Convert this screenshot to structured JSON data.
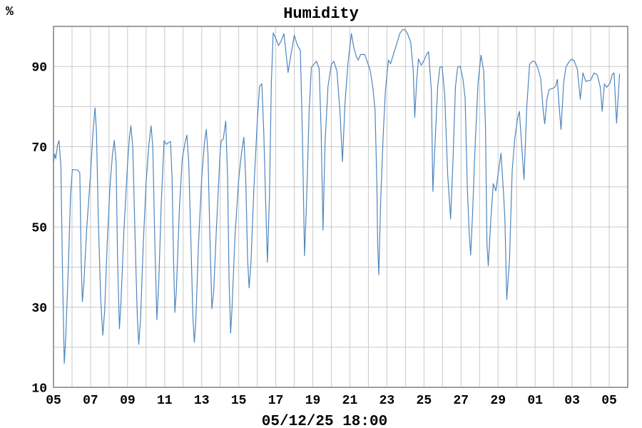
{
  "chart": {
    "colors": {
      "line": "#4f86bd",
      "title": "#2d6ea8",
      "grid": "#c9c9c9",
      "border": "#9f9f9f",
      "tick_text": "#000000",
      "background": "#ffffff"
    }
  },
  "chart_data": {
    "type": "line",
    "title": "Humidity",
    "ylabel": "%",
    "xlabel": "05/12/25 18:00",
    "ylim": [
      10,
      100
    ],
    "grid": true,
    "y_gridline_step": 10,
    "x_gridline_step_days": 1,
    "x_range_days": [
      5,
      36
    ],
    "y_ticks": [
      {
        "value": 90,
        "label": "90"
      },
      {
        "value": 70,
        "label": "70"
      },
      {
        "value": 50,
        "label": "50"
      },
      {
        "value": 30,
        "label": "30"
      },
      {
        "value": 10,
        "label": "10"
      }
    ],
    "x_ticks": [
      {
        "day": 5,
        "label": "05"
      },
      {
        "day": 7,
        "label": "07"
      },
      {
        "day": 9,
        "label": "09"
      },
      {
        "day": 11,
        "label": "11"
      },
      {
        "day": 13,
        "label": "13"
      },
      {
        "day": 15,
        "label": "15"
      },
      {
        "day": 17,
        "label": "17"
      },
      {
        "day": 19,
        "label": "19"
      },
      {
        "day": 21,
        "label": "21"
      },
      {
        "day": 23,
        "label": "23"
      },
      {
        "day": 25,
        "label": "25"
      },
      {
        "day": 27,
        "label": "27"
      },
      {
        "day": 29,
        "label": "29"
      },
      {
        "day": 31,
        "label": "01"
      },
      {
        "day": 33,
        "label": "03"
      },
      {
        "day": 35,
        "label": "05"
      }
    ],
    "series": [
      {
        "name": "Humidity",
        "points": [
          [
            5.0,
            66.3
          ],
          [
            5.06,
            68.2
          ],
          [
            5.12,
            67.0
          ],
          [
            5.22,
            70.5
          ],
          [
            5.3,
            71.5
          ],
          [
            5.4,
            65.0
          ],
          [
            5.48,
            40.0
          ],
          [
            5.58,
            16.0
          ],
          [
            5.66,
            22.0
          ],
          [
            5.8,
            40.0
          ],
          [
            5.92,
            58.0
          ],
          [
            6.02,
            64.3
          ],
          [
            6.3,
            64.2
          ],
          [
            6.42,
            63.5
          ],
          [
            6.5,
            40.0
          ],
          [
            6.56,
            31.4
          ],
          [
            6.64,
            36.0
          ],
          [
            6.8,
            50.0
          ],
          [
            7.0,
            63.0
          ],
          [
            7.12,
            73.0
          ],
          [
            7.24,
            79.7
          ],
          [
            7.32,
            74.0
          ],
          [
            7.42,
            52.0
          ],
          [
            7.55,
            32.0
          ],
          [
            7.66,
            23.0
          ],
          [
            7.76,
            29.0
          ],
          [
            7.9,
            46.0
          ],
          [
            8.05,
            60.0
          ],
          [
            8.18,
            68.0
          ],
          [
            8.28,
            71.6
          ],
          [
            8.38,
            66.0
          ],
          [
            8.46,
            42.0
          ],
          [
            8.56,
            24.6
          ],
          [
            8.64,
            31.0
          ],
          [
            8.8,
            49.0
          ],
          [
            9.0,
            66.0
          ],
          [
            9.1,
            72.5
          ],
          [
            9.18,
            75.2
          ],
          [
            9.28,
            70.0
          ],
          [
            9.4,
            48.0
          ],
          [
            9.52,
            28.0
          ],
          [
            9.6,
            20.7
          ],
          [
            9.7,
            27.0
          ],
          [
            9.85,
            46.0
          ],
          [
            10.0,
            61.0
          ],
          [
            10.15,
            70.5
          ],
          [
            10.27,
            75.2
          ],
          [
            10.36,
            70.0
          ],
          [
            10.46,
            48.0
          ],
          [
            10.58,
            26.9
          ],
          [
            10.68,
            36.0
          ],
          [
            10.82,
            56.0
          ],
          [
            10.97,
            71.5
          ],
          [
            11.1,
            70.6
          ],
          [
            11.2,
            71.0
          ],
          [
            11.32,
            71.3
          ],
          [
            11.4,
            62.0
          ],
          [
            11.48,
            42.0
          ],
          [
            11.55,
            28.7
          ],
          [
            11.63,
            34.0
          ],
          [
            11.8,
            55.0
          ],
          [
            11.95,
            67.0
          ],
          [
            12.1,
            71.0
          ],
          [
            12.2,
            72.9
          ],
          [
            12.3,
            66.0
          ],
          [
            12.42,
            46.0
          ],
          [
            12.52,
            28.0
          ],
          [
            12.6,
            21.2
          ],
          [
            12.68,
            26.0
          ],
          [
            12.82,
            45.0
          ],
          [
            13.0,
            62.0
          ],
          [
            13.15,
            71.0
          ],
          [
            13.25,
            74.3
          ],
          [
            13.34,
            68.0
          ],
          [
            13.44,
            48.0
          ],
          [
            13.55,
            29.6
          ],
          [
            13.65,
            34.0
          ],
          [
            13.8,
            50.0
          ],
          [
            14.0,
            69.0
          ],
          [
            14.06,
            71.6
          ],
          [
            14.16,
            71.8
          ],
          [
            14.3,
            76.4
          ],
          [
            14.4,
            62.0
          ],
          [
            14.48,
            36.0
          ],
          [
            14.56,
            23.5
          ],
          [
            14.64,
            30.0
          ],
          [
            14.8,
            48.0
          ],
          [
            15.0,
            62.0
          ],
          [
            15.15,
            68.5
          ],
          [
            15.28,
            72.4
          ],
          [
            15.38,
            62.0
          ],
          [
            15.48,
            42.0
          ],
          [
            15.56,
            34.8
          ],
          [
            15.66,
            41.0
          ],
          [
            15.82,
            60.0
          ],
          [
            16.0,
            76.0
          ],
          [
            16.12,
            85.0
          ],
          [
            16.25,
            85.7
          ],
          [
            16.35,
            74.0
          ],
          [
            16.46,
            55.0
          ],
          [
            16.55,
            41.2
          ],
          [
            16.66,
            58.0
          ],
          [
            16.76,
            86.0
          ],
          [
            16.86,
            98.4
          ],
          [
            17.0,
            97.0
          ],
          [
            17.15,
            95.2
          ],
          [
            17.3,
            96.5
          ],
          [
            17.44,
            98.2
          ],
          [
            17.56,
            93.0
          ],
          [
            17.66,
            88.5
          ],
          [
            17.82,
            93.0
          ],
          [
            18.0,
            97.8
          ],
          [
            18.15,
            95.5
          ],
          [
            18.33,
            93.9
          ],
          [
            18.44,
            72.0
          ],
          [
            18.55,
            42.8
          ],
          [
            18.66,
            56.0
          ],
          [
            18.8,
            79.0
          ],
          [
            18.92,
            89.8
          ],
          [
            19.05,
            90.5
          ],
          [
            19.2,
            91.3
          ],
          [
            19.34,
            89.5
          ],
          [
            19.45,
            74.0
          ],
          [
            19.55,
            49.2
          ],
          [
            19.66,
            71.0
          ],
          [
            19.82,
            85.0
          ],
          [
            20.0,
            90.5
          ],
          [
            20.13,
            91.3
          ],
          [
            20.3,
            88.9
          ],
          [
            20.46,
            79.0
          ],
          [
            20.6,
            66.3
          ],
          [
            20.74,
            81.0
          ],
          [
            20.9,
            91.0
          ],
          [
            21.08,
            98.2
          ],
          [
            21.22,
            94.5
          ],
          [
            21.35,
            92.5
          ],
          [
            21.45,
            91.6
          ],
          [
            21.58,
            93.0
          ],
          [
            21.8,
            93.0
          ],
          [
            21.95,
            91.0
          ],
          [
            22.1,
            89.0
          ],
          [
            22.25,
            84.5
          ],
          [
            22.36,
            79.0
          ],
          [
            22.46,
            60.0
          ],
          [
            22.5,
            46.0
          ],
          [
            22.56,
            38.1
          ],
          [
            22.66,
            56.0
          ],
          [
            22.8,
            73.0
          ],
          [
            22.92,
            84.0
          ],
          [
            23.08,
            91.6
          ],
          [
            23.2,
            90.7
          ],
          [
            23.4,
            93.8
          ],
          [
            23.52,
            95.5
          ],
          [
            23.7,
            98.3
          ],
          [
            23.85,
            99.2
          ],
          [
            23.97,
            99.2
          ],
          [
            24.1,
            98.3
          ],
          [
            24.28,
            96.1
          ],
          [
            24.42,
            89.0
          ],
          [
            24.5,
            77.3
          ],
          [
            24.6,
            86.0
          ],
          [
            24.7,
            91.9
          ],
          [
            24.85,
            90.3
          ],
          [
            25.0,
            91.5
          ],
          [
            25.14,
            93.0
          ],
          [
            25.25,
            93.7
          ],
          [
            25.4,
            84.0
          ],
          [
            25.48,
            58.9
          ],
          [
            25.6,
            71.0
          ],
          [
            25.74,
            85.0
          ],
          [
            25.86,
            89.8
          ],
          [
            25.98,
            90.0
          ],
          [
            26.12,
            83.0
          ],
          [
            26.28,
            63.0
          ],
          [
            26.44,
            52.0
          ],
          [
            26.56,
            66.0
          ],
          [
            26.7,
            85.0
          ],
          [
            26.82,
            89.8
          ],
          [
            26.95,
            90.1
          ],
          [
            27.1,
            87.0
          ],
          [
            27.22,
            82.3
          ],
          [
            27.34,
            60.0
          ],
          [
            27.44,
            48.5
          ],
          [
            27.52,
            43.0
          ],
          [
            27.62,
            53.0
          ],
          [
            27.76,
            70.0
          ],
          [
            27.92,
            86.0
          ],
          [
            28.08,
            92.8
          ],
          [
            28.22,
            89.0
          ],
          [
            28.32,
            75.0
          ],
          [
            28.4,
            46.0
          ],
          [
            28.47,
            40.3
          ],
          [
            28.6,
            51.0
          ],
          [
            28.74,
            60.8
          ],
          [
            28.88,
            59.0
          ],
          [
            29.04,
            64.5
          ],
          [
            29.16,
            68.4
          ],
          [
            29.3,
            58.0
          ],
          [
            29.37,
            52.0
          ],
          [
            29.47,
            31.9
          ],
          [
            29.62,
            42.0
          ],
          [
            29.76,
            64.0
          ],
          [
            29.9,
            72.0
          ],
          [
            30.05,
            77.0
          ],
          [
            30.15,
            78.8
          ],
          [
            30.28,
            70.0
          ],
          [
            30.4,
            61.8
          ],
          [
            30.55,
            80.0
          ],
          [
            30.7,
            90.5
          ],
          [
            30.85,
            91.3
          ],
          [
            31.0,
            91.2
          ],
          [
            31.15,
            89.5
          ],
          [
            31.3,
            87.0
          ],
          [
            31.44,
            78.8
          ],
          [
            31.52,
            75.7
          ],
          [
            31.64,
            82.0
          ],
          [
            31.76,
            84.3
          ],
          [
            31.95,
            84.5
          ],
          [
            32.1,
            85.0
          ],
          [
            32.2,
            86.8
          ],
          [
            32.3,
            80.0
          ],
          [
            32.4,
            74.3
          ],
          [
            32.54,
            86.0
          ],
          [
            32.66,
            89.8
          ],
          [
            32.8,
            91.0
          ],
          [
            32.95,
            91.8
          ],
          [
            33.1,
            91.5
          ],
          [
            33.28,
            89.3
          ],
          [
            33.44,
            81.8
          ],
          [
            33.58,
            88.4
          ],
          [
            33.74,
            86.3
          ],
          [
            34.0,
            86.6
          ],
          [
            34.18,
            88.4
          ],
          [
            34.35,
            88.0
          ],
          [
            34.52,
            84.8
          ],
          [
            34.62,
            78.8
          ],
          [
            34.74,
            85.7
          ],
          [
            34.86,
            84.8
          ],
          [
            35.05,
            85.9
          ],
          [
            35.16,
            88.0
          ],
          [
            35.26,
            88.4
          ],
          [
            35.4,
            75.9
          ],
          [
            35.56,
            88.2
          ]
        ]
      }
    ]
  }
}
